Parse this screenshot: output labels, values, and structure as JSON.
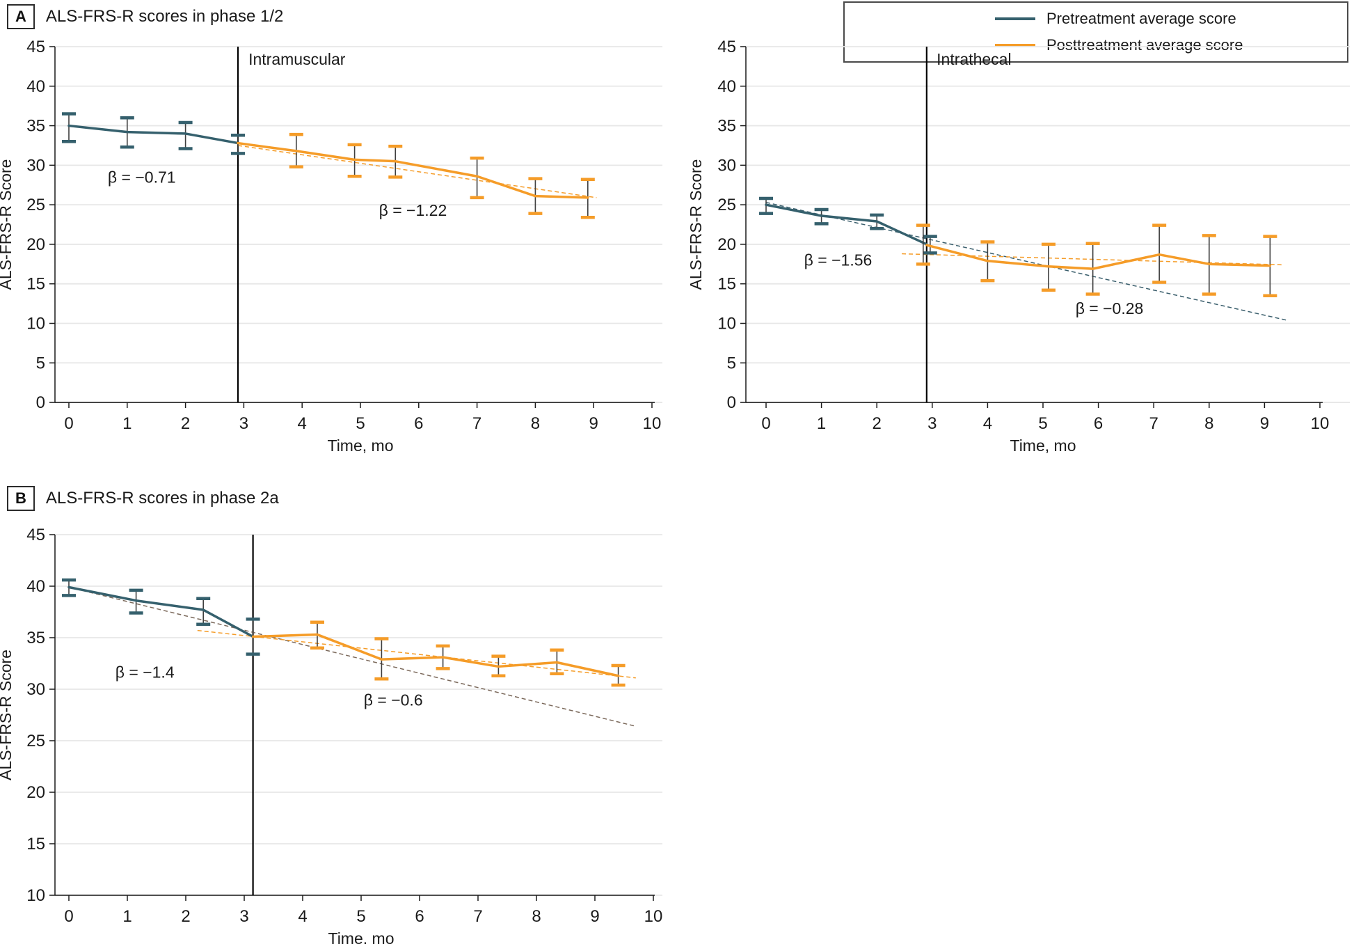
{
  "panels": {
    "a": {
      "letter": "A",
      "title": "ALS-FRS-R scores in phase 1/2"
    },
    "b": {
      "letter": "B",
      "title": "ALS-FRS-R scores in phase 2a"
    }
  },
  "legend": {
    "items": [
      {
        "label": "Pretreatment average score",
        "color": "#35606D"
      },
      {
        "label": "Posttreatment average score",
        "color": "#F59C28"
      }
    ]
  },
  "colors": {
    "pretreatment": "#35606D",
    "posttreatment": "#F59C28",
    "grid": "#E7E7E7",
    "axis": "#1A1A1A",
    "error_stem": "#3F3F3F",
    "vline": "#000000",
    "text": "#1A1A1A",
    "trend_pre_phase2a": "#7C6A5C",
    "trend_pre_intrathecal": "#3B5F6D"
  },
  "chart_data": [
    {
      "id": "im",
      "type": "line",
      "xlabel": "Time, mo",
      "ylabel": "ALS-FRS-R Score",
      "xlim": [
        0,
        10
      ],
      "ylim": [
        0,
        45
      ],
      "xticks": [
        0,
        1,
        2,
        3,
        4,
        5,
        6,
        7,
        8,
        9,
        10
      ],
      "yticks": [
        0,
        5,
        10,
        15,
        20,
        25,
        30,
        35,
        40,
        45
      ],
      "grid": true,
      "vline_x": 2.9,
      "vline_label": {
        "text": "Intramuscular",
        "x": 3.08,
        "y": 42.7
      },
      "series": [
        {
          "name": "Pretreatment average score",
          "color": "#35606D",
          "x": [
            0,
            1,
            2,
            2.9
          ],
          "y": [
            35.0,
            34.2,
            34.0,
            32.8
          ],
          "err_lo": [
            33.0,
            32.3,
            32.1,
            31.5
          ],
          "err_hi": [
            36.5,
            36.0,
            35.4,
            33.8
          ]
        },
        {
          "name": "Posttreatment average score",
          "color": "#F59C28",
          "x": [
            2.9,
            3.9,
            4.9,
            5.6,
            7.0,
            8.0,
            8.9
          ],
          "y": [
            32.8,
            31.8,
            30.7,
            30.5,
            28.6,
            26.1,
            25.9
          ],
          "err_lo": [
            null,
            29.8,
            28.6,
            28.5,
            25.9,
            23.9,
            23.4
          ],
          "err_hi": [
            null,
            33.9,
            32.6,
            32.4,
            30.9,
            28.3,
            28.2
          ]
        }
      ],
      "trendlines": [
        {
          "name": "posttreatment-trend",
          "color": "#F59C28",
          "x1": 2.9,
          "y1": 32.5,
          "x2": 9.05,
          "y2": 25.9
        }
      ],
      "annotations": [
        {
          "text": "β = −0.71",
          "x": 1.25,
          "y": 27.8
        },
        {
          "text": "β = −1.22",
          "x": 5.9,
          "y": 23.6
        }
      ]
    },
    {
      "id": "it",
      "type": "line",
      "xlabel": "Time, mo",
      "ylabel": "ALS-FRS-R Score",
      "xlim": [
        0,
        10
      ],
      "ylim": [
        0,
        45
      ],
      "xticks": [
        0,
        1,
        2,
        3,
        4,
        5,
        6,
        7,
        8,
        9,
        10
      ],
      "yticks": [
        0,
        5,
        10,
        15,
        20,
        25,
        30,
        35,
        40,
        45
      ],
      "grid": true,
      "vline_x": 2.9,
      "vline_label": {
        "text": "Intrathecal",
        "x": 3.08,
        "y": 42.7
      },
      "series": [
        {
          "name": "Pretreatment average score",
          "color": "#35606D",
          "x": [
            0,
            1,
            2,
            2.9
          ],
          "y": [
            25.0,
            23.6,
            22.9,
            20.0
          ],
          "err_lo": [
            23.9,
            22.6,
            22.0,
            18.9
          ],
          "err_hi": [
            25.8,
            24.4,
            23.7,
            21.0
          ]
        },
        {
          "name": "Posttreatment average score",
          "color": "#F59C28",
          "x": [
            2.9,
            4.0,
            5.1,
            5.9,
            7.1,
            8.0,
            9.1
          ],
          "y": [
            19.9,
            17.9,
            17.2,
            16.9,
            18.7,
            17.5,
            17.3
          ],
          "err_lo": [
            17.5,
            15.4,
            14.2,
            13.7,
            15.2,
            13.7,
            13.5
          ],
          "err_hi": [
            22.4,
            20.3,
            20.0,
            20.1,
            22.4,
            21.1,
            21.0
          ]
        }
      ],
      "trendlines": [
        {
          "name": "pretreatment-trend",
          "color": "#3B5F6D",
          "x1": 0,
          "y1": 25.3,
          "x2": 9.4,
          "y2": 10.4
        },
        {
          "name": "posttreatment-trend",
          "color": "#F59C28",
          "x1": 2.45,
          "y1": 18.8,
          "x2": 9.35,
          "y2": 17.4
        }
      ],
      "annotations": [
        {
          "text": "β = −1.56",
          "x": 1.3,
          "y": 17.3
        },
        {
          "text": "β = −0.28",
          "x": 6.2,
          "y": 11.2
        }
      ]
    },
    {
      "id": "p2",
      "type": "line",
      "xlabel": "Time, mo",
      "ylabel": "ALS-FRS-R Score",
      "xlim": [
        0,
        10
      ],
      "ylim": [
        10,
        45
      ],
      "xticks": [
        0,
        1,
        2,
        3,
        4,
        5,
        6,
        7,
        8,
        9,
        10
      ],
      "yticks": [
        10,
        15,
        20,
        25,
        30,
        35,
        40,
        45
      ],
      "grid": true,
      "vline_x": 3.15,
      "vline_label": null,
      "series": [
        {
          "name": "Pretreatment average score",
          "color": "#35606D",
          "x": [
            0,
            1.15,
            2.3,
            3.15
          ],
          "y": [
            39.9,
            38.6,
            37.7,
            35.1
          ],
          "err_lo": [
            39.1,
            37.4,
            36.3,
            33.4
          ],
          "err_hi": [
            40.6,
            39.6,
            38.8,
            36.8
          ]
        },
        {
          "name": "Posttreatment average score",
          "color": "#F59C28",
          "x": [
            3.15,
            4.25,
            5.35,
            6.4,
            7.35,
            8.35,
            9.4
          ],
          "y": [
            35.1,
            35.3,
            32.9,
            33.1,
            32.2,
            32.6,
            31.3
          ],
          "err_lo": [
            null,
            34.0,
            31.0,
            32.0,
            31.3,
            31.5,
            30.4
          ],
          "err_hi": [
            null,
            36.5,
            34.9,
            34.2,
            33.2,
            33.8,
            32.3
          ]
        }
      ],
      "trendlines": [
        {
          "name": "pretreatment-trend",
          "color": "#7C6A5C",
          "x1": 0,
          "y1": 39.9,
          "x2": 9.7,
          "y2": 26.4
        },
        {
          "name": "posttreatment-trend",
          "color": "#F59C28",
          "x1": 2.2,
          "y1": 35.7,
          "x2": 9.7,
          "y2": 31.1
        }
      ],
      "annotations": [
        {
          "text": "β = −1.4",
          "x": 1.3,
          "y": 31.1
        },
        {
          "text": "β = −0.6",
          "x": 5.55,
          "y": 28.4
        }
      ]
    }
  ]
}
